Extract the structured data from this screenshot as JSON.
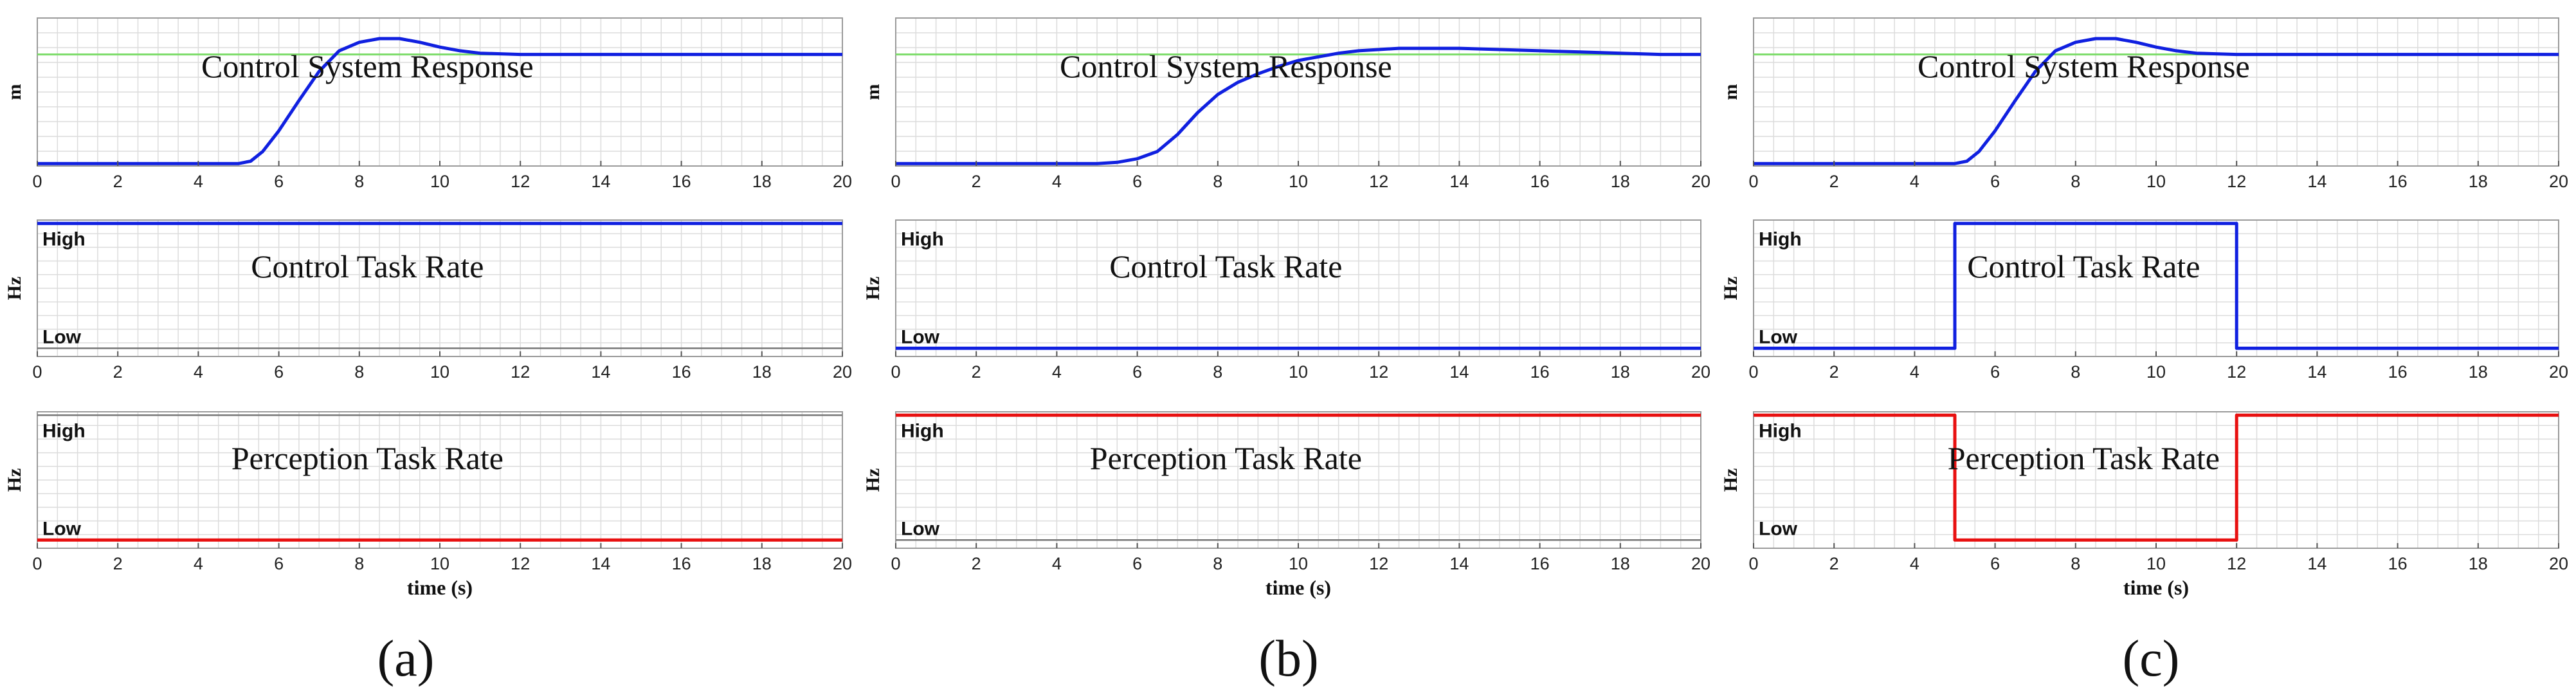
{
  "figure": {
    "panels": [
      "(a)",
      "(b)",
      "(c)"
    ],
    "xlabel": "time (s)",
    "colors": {
      "grid": "#dcdcdc",
      "frame": "#9a9a9a",
      "target": "#7ddc6a",
      "control": "#1020e0",
      "perception": "#e81010",
      "rate_ref": "#777777"
    }
  },
  "chart_data": [
    {
      "id": "a-response",
      "type": "line",
      "panel": "(a)",
      "title": "Control System Response",
      "ylabel": "m",
      "xlim": [
        0,
        20
      ],
      "ylim": [
        -0.02,
        1.2
      ],
      "x_ticks": [
        0,
        2,
        4,
        6,
        8,
        10,
        12,
        14,
        16,
        18,
        20
      ],
      "series": [
        {
          "name": "Target",
          "color": "#7ddc6a",
          "x": [
            0,
            20
          ],
          "y": [
            0.9,
            0.9
          ]
        },
        {
          "name": "Response",
          "color": "#1020e0",
          "x": [
            0,
            4,
            5,
            5.3,
            5.6,
            6,
            6.5,
            7,
            7.5,
            8,
            8.5,
            9,
            9.5,
            10,
            10.5,
            11,
            12,
            13,
            14,
            16,
            20
          ],
          "y": [
            0,
            0,
            0,
            0.02,
            0.1,
            0.27,
            0.52,
            0.76,
            0.93,
            1.0,
            1.03,
            1.03,
            1.0,
            0.96,
            0.93,
            0.91,
            0.9,
            0.9,
            0.9,
            0.9,
            0.9
          ]
        }
      ]
    },
    {
      "id": "a-control",
      "type": "line",
      "panel": "(a)",
      "title": "Control Task Rate",
      "ylabel": "Hz",
      "xlim": [
        0,
        20
      ],
      "ylim": [
        0,
        1
      ],
      "x_ticks": [
        0,
        2,
        4,
        6,
        8,
        10,
        12,
        14,
        16,
        18,
        20
      ],
      "levels": {
        "high": "High",
        "low": "Low",
        "high_y": 0.975,
        "low_y": 0.06
      },
      "series": [
        {
          "name": "Control rate",
          "color": "#1020e0",
          "x": [
            0,
            20
          ],
          "y": [
            0.975,
            0.975
          ]
        },
        {
          "name": "Low reference",
          "color": "#777777",
          "x": [
            0,
            20
          ],
          "y": [
            0.06,
            0.06
          ]
        }
      ]
    },
    {
      "id": "a-perception",
      "type": "line",
      "panel": "(a)",
      "title": "Perception Task Rate",
      "ylabel": "Hz",
      "xlabel": "time (s)",
      "xlim": [
        0,
        20
      ],
      "ylim": [
        0,
        1
      ],
      "x_ticks": [
        0,
        2,
        4,
        6,
        8,
        10,
        12,
        14,
        16,
        18,
        20
      ],
      "levels": {
        "high": "High",
        "low": "Low",
        "high_y": 0.975,
        "low_y": 0.06
      },
      "series": [
        {
          "name": "High reference",
          "color": "#777777",
          "x": [
            0,
            20
          ],
          "y": [
            0.975,
            0.975
          ]
        },
        {
          "name": "Perception rate",
          "color": "#e81010",
          "x": [
            0,
            20
          ],
          "y": [
            0.06,
            0.06
          ]
        }
      ]
    },
    {
      "id": "b-response",
      "type": "line",
      "panel": "(b)",
      "title": "Control System Response",
      "ylabel": "m",
      "xlim": [
        0,
        20
      ],
      "ylim": [
        -0.02,
        1.2
      ],
      "x_ticks": [
        0,
        2,
        4,
        6,
        8,
        10,
        12,
        14,
        16,
        18,
        20
      ],
      "series": [
        {
          "name": "Target",
          "color": "#7ddc6a",
          "x": [
            0,
            20
          ],
          "y": [
            0.9,
            0.9
          ]
        },
        {
          "name": "Response",
          "color": "#1020e0",
          "x": [
            0,
            5,
            5.5,
            6,
            6.5,
            7,
            7.5,
            8,
            8.5,
            9,
            9.5,
            10,
            10.5,
            11,
            11.5,
            12,
            12.5,
            13,
            14,
            15,
            16,
            17,
            18,
            19,
            20
          ],
          "y": [
            0,
            0,
            0.01,
            0.04,
            0.1,
            0.24,
            0.42,
            0.57,
            0.67,
            0.74,
            0.8,
            0.85,
            0.88,
            0.91,
            0.93,
            0.94,
            0.95,
            0.95,
            0.95,
            0.94,
            0.93,
            0.92,
            0.91,
            0.9,
            0.9
          ]
        }
      ]
    },
    {
      "id": "b-control",
      "type": "line",
      "panel": "(b)",
      "title": "Control Task Rate",
      "ylabel": "Hz",
      "xlim": [
        0,
        20
      ],
      "ylim": [
        0,
        1
      ],
      "x_ticks": [
        0,
        2,
        4,
        6,
        8,
        10,
        12,
        14,
        16,
        18,
        20
      ],
      "levels": {
        "high": "High",
        "low": "Low",
        "high_y": 0.975,
        "low_y": 0.06
      },
      "series": [
        {
          "name": "Control rate",
          "color": "#1020e0",
          "x": [
            0,
            20
          ],
          "y": [
            0.06,
            0.06
          ]
        }
      ]
    },
    {
      "id": "b-perception",
      "type": "line",
      "panel": "(b)",
      "title": "Perception Task Rate",
      "ylabel": "Hz",
      "xlabel": "time (s)",
      "xlim": [
        0,
        20
      ],
      "ylim": [
        0,
        1
      ],
      "x_ticks": [
        0,
        2,
        4,
        6,
        8,
        10,
        12,
        14,
        16,
        18,
        20
      ],
      "levels": {
        "high": "High",
        "low": "Low",
        "high_y": 0.975,
        "low_y": 0.06
      },
      "series": [
        {
          "name": "Perception rate",
          "color": "#e81010",
          "x": [
            0,
            20
          ],
          "y": [
            0.975,
            0.975
          ]
        },
        {
          "name": "Low reference",
          "color": "#777777",
          "x": [
            0,
            20
          ],
          "y": [
            0.06,
            0.06
          ]
        }
      ]
    },
    {
      "id": "c-response",
      "type": "line",
      "panel": "(c)",
      "title": "Control System Response",
      "ylabel": "m",
      "xlim": [
        0,
        20
      ],
      "ylim": [
        -0.02,
        1.2
      ],
      "x_ticks": [
        0,
        2,
        4,
        6,
        8,
        10,
        12,
        14,
        16,
        18,
        20
      ],
      "series": [
        {
          "name": "Target",
          "color": "#7ddc6a",
          "x": [
            0,
            20
          ],
          "y": [
            0.9,
            0.9
          ]
        },
        {
          "name": "Response",
          "color": "#1020e0",
          "x": [
            0,
            4,
            5,
            5.3,
            5.6,
            6,
            6.5,
            7,
            7.5,
            8,
            8.5,
            9,
            9.5,
            10,
            10.5,
            11,
            12,
            13,
            14,
            16,
            20
          ],
          "y": [
            0,
            0,
            0,
            0.02,
            0.1,
            0.27,
            0.52,
            0.76,
            0.93,
            1.0,
            1.03,
            1.03,
            1.0,
            0.96,
            0.93,
            0.91,
            0.9,
            0.9,
            0.9,
            0.9,
            0.9
          ]
        }
      ]
    },
    {
      "id": "c-control",
      "type": "line",
      "panel": "(c)",
      "title": "Control Task Rate",
      "ylabel": "Hz",
      "xlim": [
        0,
        20
      ],
      "ylim": [
        0,
        1
      ],
      "x_ticks": [
        0,
        2,
        4,
        6,
        8,
        10,
        12,
        14,
        16,
        18,
        20
      ],
      "levels": {
        "high": "High",
        "low": "Low",
        "high_y": 0.975,
        "low_y": 0.06
      },
      "series": [
        {
          "name": "Control rate",
          "color": "#1020e0",
          "x": [
            0,
            5,
            5,
            12,
            12,
            20
          ],
          "y": [
            0.06,
            0.06,
            0.975,
            0.975,
            0.06,
            0.06
          ]
        }
      ]
    },
    {
      "id": "c-perception",
      "type": "line",
      "panel": "(c)",
      "title": "Perception Task Rate",
      "ylabel": "Hz",
      "xlabel": "time (s)",
      "xlim": [
        0,
        20
      ],
      "ylim": [
        0,
        1
      ],
      "x_ticks": [
        0,
        2,
        4,
        6,
        8,
        10,
        12,
        14,
        16,
        18,
        20
      ],
      "levels": {
        "high": "High",
        "low": "Low",
        "high_y": 0.975,
        "low_y": 0.06
      },
      "series": [
        {
          "name": "Perception rate",
          "color": "#e81010",
          "x": [
            0,
            5,
            5,
            12,
            12,
            20
          ],
          "y": [
            0.975,
            0.975,
            0.06,
            0.06,
            0.975,
            0.975
          ]
        }
      ]
    }
  ]
}
